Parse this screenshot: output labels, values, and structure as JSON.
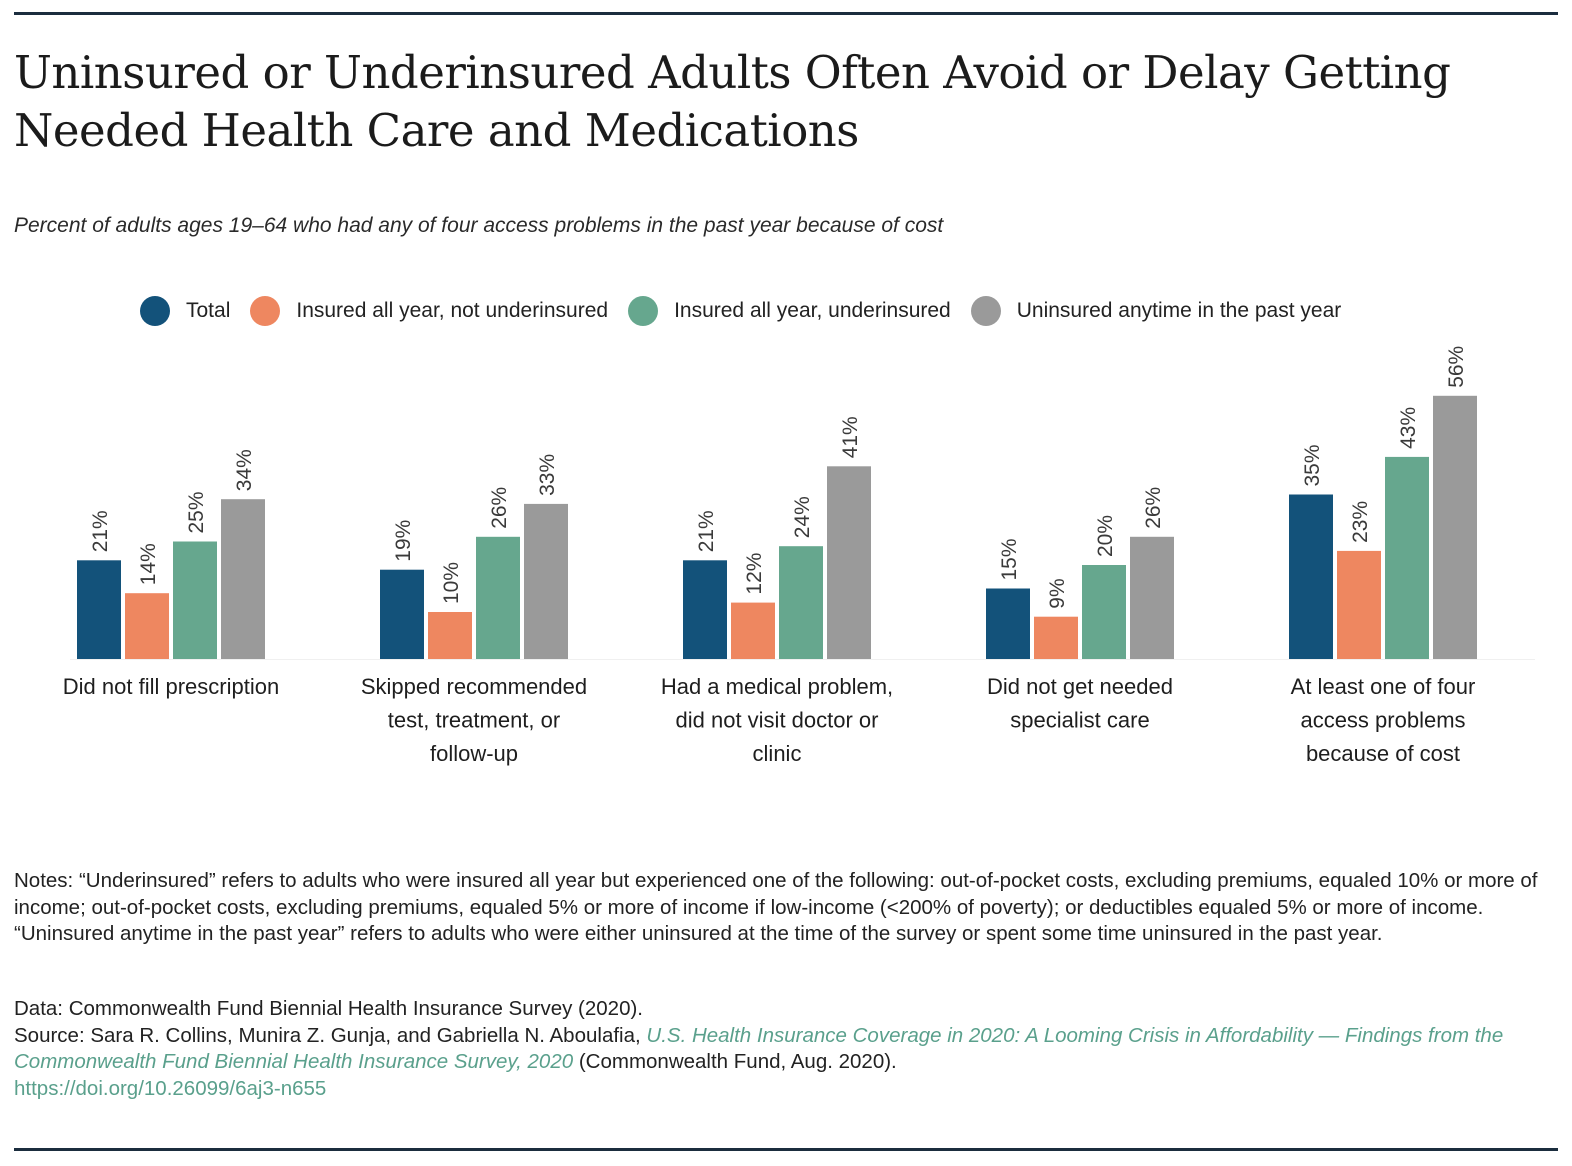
{
  "header": {
    "title": "Uninsured or Underinsured Adults Often Avoid or Delay Getting Needed Health Care and Medications",
    "subtitle": "Percent of adults ages 19–64 who had any of four access problems in the past year because of cost"
  },
  "chart_data": {
    "type": "bar",
    "title": "Uninsured or Underinsured Adults Often Avoid or Delay Getting Needed Health Care and Medications",
    "subtitle": "Percent of adults ages 19–64 who had any of four access problems in the past year because of cost",
    "categories": [
      "Did not fill prescription",
      "Skipped recommended test, treatment, or follow-up",
      "Had a medical problem, did not visit doctor or clinic",
      "Did not get needed specialist care",
      "At least one of four access problems because of cost"
    ],
    "category_lines": [
      [
        "Did not fill prescription"
      ],
      [
        "Skipped recommended",
        "test, treatment, or",
        "follow-up"
      ],
      [
        "Had a medical problem,",
        "did not visit doctor or",
        "clinic"
      ],
      [
        "Did not get needed",
        "specialist care"
      ],
      [
        "At least one of four",
        "access problems",
        "because of cost"
      ]
    ],
    "series": [
      {
        "name": "Total",
        "color": "#13527a",
        "values": [
          21,
          19,
          21,
          15,
          35
        ]
      },
      {
        "name": "Insured all year, not underinsured",
        "color": "#ee8760",
        "values": [
          14,
          10,
          12,
          9,
          23
        ]
      },
      {
        "name": "Insured all year, underinsured",
        "color": "#66a78e",
        "values": [
          25,
          26,
          24,
          20,
          43
        ]
      },
      {
        "name": "Uninsured anytime in the past year",
        "color": "#9a9a9a",
        "values": [
          34,
          33,
          41,
          26,
          56
        ]
      }
    ],
    "value_suffix": "%",
    "ylim": [
      0,
      60
    ],
    "xlabel": "",
    "ylabel": "",
    "legend_position": "top",
    "grid": false
  },
  "footer": {
    "notes": "Notes: “Underinsured” refers to adults who were insured all year but experienced one of the following: out-of-pocket costs, excluding premiums, equaled 10% or more of income; out-of-pocket costs, excluding premiums, equaled 5% or more of income if low-income (<200% of poverty); or deductibles equaled 5% or more of income. “Uninsured anytime in the past year” refers to adults who were either uninsured at the time of the survey or spent some time uninsured in the past year.",
    "data_line": "Data: Commonwealth Fund Biennial Health Insurance Survey (2020).",
    "source_prefix": "Source: Sara R. Collins, Munira Z. Gunja, and Gabriella N. Aboulafia, ",
    "source_title": "U.S. Health Insurance Coverage in 2020: A Looming Crisis in Affordability — Findings from the Commonwealth Fund Biennial Health Insurance Survey, 2020",
    "source_suffix": " (Commonwealth Fund, Aug. 2020).",
    "doi": "https://doi.org/10.26099/6aj3-n655"
  }
}
